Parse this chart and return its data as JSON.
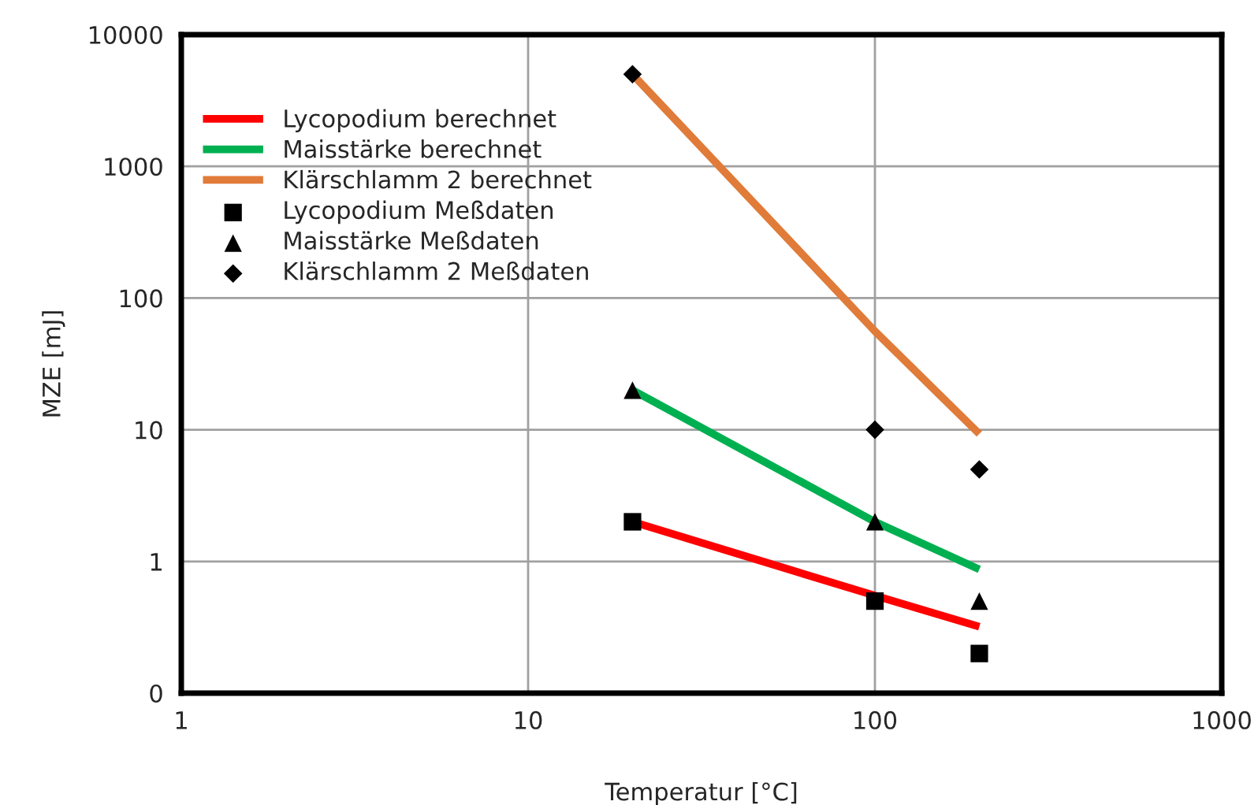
{
  "chart_data": {
    "type": "line",
    "xlabel": "Temperatur [°C]",
    "ylabel": "MZE [mJ]",
    "log": "xy",
    "xlim": [
      1,
      1000
    ],
    "xticks": [
      1,
      10,
      100,
      1000
    ],
    "ylim": [
      0.1,
      10000
    ],
    "yticks": [
      {
        "value": 0.1,
        "label": "0"
      },
      1,
      10,
      100,
      1000,
      10000
    ],
    "grid": true,
    "legend": "top left",
    "series": [
      {
        "name": "Lycopodium berechnet",
        "color": "#ff0000",
        "x": [
          20,
          100,
          200
        ],
        "values": [
          2,
          0.55,
          0.32
        ],
        "marker": "none"
      },
      {
        "name": "Maisstärke berechnet",
        "color": "#00b050",
        "x": [
          20,
          100,
          200
        ],
        "values": [
          20,
          2,
          0.87
        ],
        "marker": "none"
      },
      {
        "name": "Klärschlamm 2 berechnet",
        "color": "#e07b39",
        "x": [
          20,
          100,
          200
        ],
        "values": [
          5000,
          56,
          9.3
        ],
        "marker": "none"
      },
      {
        "name": "Lycopodium Meßdaten",
        "type": "scatter",
        "color": "#000000",
        "x": [
          20,
          100,
          200
        ],
        "values": [
          2,
          0.5,
          0.2
        ],
        "marker": "square"
      },
      {
        "name": "Maisstärke Meßdaten",
        "type": "scatter",
        "color": "#000000",
        "x": [
          20,
          100,
          200
        ],
        "values": [
          20,
          2,
          0.5
        ],
        "marker": "triangle"
      },
      {
        "name": "Klärschlamm 2 Meßdaten",
        "type": "scatter",
        "color": "#000000",
        "x": [
          20,
          100,
          200
        ],
        "values": [
          5000,
          10,
          5
        ],
        "marker": "diamond"
      }
    ]
  }
}
